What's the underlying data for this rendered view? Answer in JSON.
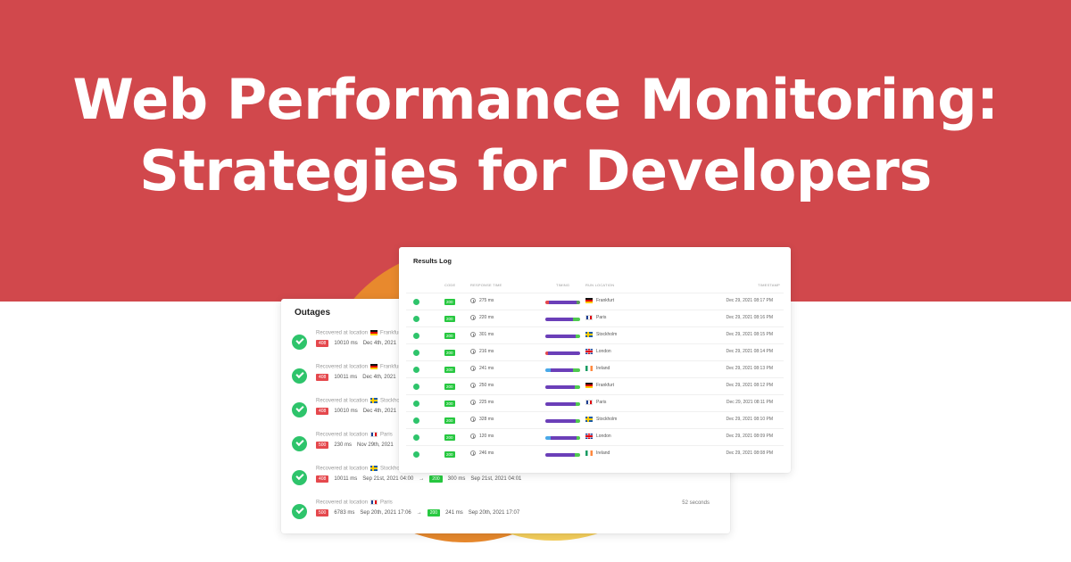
{
  "headline": {
    "line1": "Web Performance Monitoring:",
    "line2": "Strategies for Developers"
  },
  "colors": {
    "hero_bg": "#d1484c",
    "orange_blob": "#e8892d",
    "yellow_blob": "#f5cf5c",
    "success_green": "#2ec46b",
    "code_green": "#27c840",
    "error_red": "#e5484d",
    "timing_purple": "#6b3fb8"
  },
  "results_log": {
    "title": "Results Log",
    "columns": [
      "Code",
      "Response Time",
      "Timing",
      "Run Location",
      "Timestamp"
    ],
    "rows": [
      {
        "status": "success",
        "code": "200",
        "response_time": "275 ms",
        "location": "Frankfurt",
        "flag": "de",
        "timestamp": "Dec 29, 2021 08:17 PM",
        "timing": [
          [
            "#e5484d",
            10
          ],
          [
            "#6b3fb8",
            80
          ],
          [
            "#5a9b5a",
            10
          ]
        ]
      },
      {
        "status": "success",
        "code": "200",
        "response_time": "220 ms",
        "location": "Paris",
        "flag": "fr",
        "timestamp": "Dec 29, 2021 08:16 PM",
        "timing": [
          [
            "#6b3fb8",
            80
          ],
          [
            "#4fc94f",
            20
          ]
        ]
      },
      {
        "status": "success",
        "code": "200",
        "response_time": "301 ms",
        "location": "Stockholm",
        "flag": "se",
        "timestamp": "Dec 29, 2021 08:15 PM",
        "timing": [
          [
            "#6b3fb8",
            88
          ],
          [
            "#4fc94f",
            12
          ]
        ]
      },
      {
        "status": "success",
        "code": "200",
        "response_time": "216 ms",
        "location": "London",
        "flag": "gb",
        "timestamp": "Dec 29, 2021 08:14 PM",
        "timing": [
          [
            "#e5484d",
            8
          ],
          [
            "#6b3fb8",
            92
          ]
        ]
      },
      {
        "status": "success",
        "code": "200",
        "response_time": "241 ms",
        "location": "Ireland",
        "flag": "ie",
        "timestamp": "Dec 29, 2021 08:13 PM",
        "timing": [
          [
            "#4aa8e8",
            15
          ],
          [
            "#6b3fb8",
            65
          ],
          [
            "#4fc94f",
            20
          ]
        ]
      },
      {
        "status": "success",
        "code": "200",
        "response_time": "250 ms",
        "location": "Frankfurt",
        "flag": "de",
        "timestamp": "Dec 29, 2021 08:12 PM",
        "timing": [
          [
            "#6b3fb8",
            85
          ],
          [
            "#4fc94f",
            15
          ]
        ]
      },
      {
        "status": "success",
        "code": "200",
        "response_time": "225 ms",
        "location": "Paris",
        "flag": "fr",
        "timestamp": "Dec 29, 2021 08:11 PM",
        "timing": [
          [
            "#6b3fb8",
            88
          ],
          [
            "#4fc94f",
            12
          ]
        ]
      },
      {
        "status": "success",
        "code": "200",
        "response_time": "328 ms",
        "location": "Stockholm",
        "flag": "se",
        "timestamp": "Dec 29, 2021 08:10 PM",
        "timing": [
          [
            "#6b3fb8",
            88
          ],
          [
            "#4fc94f",
            12
          ]
        ]
      },
      {
        "status": "success",
        "code": "200",
        "response_time": "120 ms",
        "location": "London",
        "flag": "gb",
        "timestamp": "Dec 29, 2021 08:09 PM",
        "timing": [
          [
            "#4aa8e8",
            15
          ],
          [
            "#6b3fb8",
            75
          ],
          [
            "#4fc94f",
            10
          ]
        ]
      },
      {
        "status": "success",
        "code": "200",
        "response_time": "246 ms",
        "location": "Ireland",
        "flag": "ie",
        "timestamp": "Dec 29, 2021 08:08 PM",
        "timing": [
          [
            "#6b3fb8",
            85
          ],
          [
            "#4fc94f",
            15
          ]
        ]
      }
    ]
  },
  "outages": {
    "title": "Outages",
    "recovered_label": "Recovered at location",
    "items": [
      {
        "location": "Frankfurt",
        "flag": "de",
        "fail_code": "408",
        "fail_time": "10010 ms",
        "fail_date": "Dec 4th, 2021",
        "ok_code": "",
        "ok_time": "",
        "ok_date": "",
        "duration": ""
      },
      {
        "location": "Frankfurt",
        "flag": "de",
        "fail_code": "408",
        "fail_time": "10011 ms",
        "fail_date": "Dec 4th, 2021",
        "ok_code": "",
        "ok_time": "",
        "ok_date": "",
        "duration": ""
      },
      {
        "location": "Stockholm",
        "flag": "se",
        "fail_code": "408",
        "fail_time": "10010 ms",
        "fail_date": "Dec 4th, 2021",
        "ok_code": "",
        "ok_time": "",
        "ok_date": "",
        "duration": ""
      },
      {
        "location": "Paris",
        "flag": "fr",
        "fail_code": "500",
        "fail_time": "230 ms",
        "fail_date": "Nov 29th, 2021",
        "ok_code": "",
        "ok_time": "",
        "ok_date": "",
        "duration": ""
      },
      {
        "location": "Stockholm",
        "flag": "se",
        "fail_code": "408",
        "fail_time": "10011 ms",
        "fail_date": "Sep 21st, 2021 04:00",
        "ok_code": "200",
        "ok_time": "300 ms",
        "ok_date": "Sep 21st, 2021 04:01",
        "duration": "40 seconds"
      },
      {
        "location": "Paris",
        "flag": "fr",
        "fail_code": "500",
        "fail_time": "6783 ms",
        "fail_date": "Sep 20th, 2021 17:06",
        "ok_code": "200",
        "ok_time": "241 ms",
        "ok_date": "Sep 20th, 2021 17:07",
        "duration": "52 seconds"
      }
    ]
  }
}
